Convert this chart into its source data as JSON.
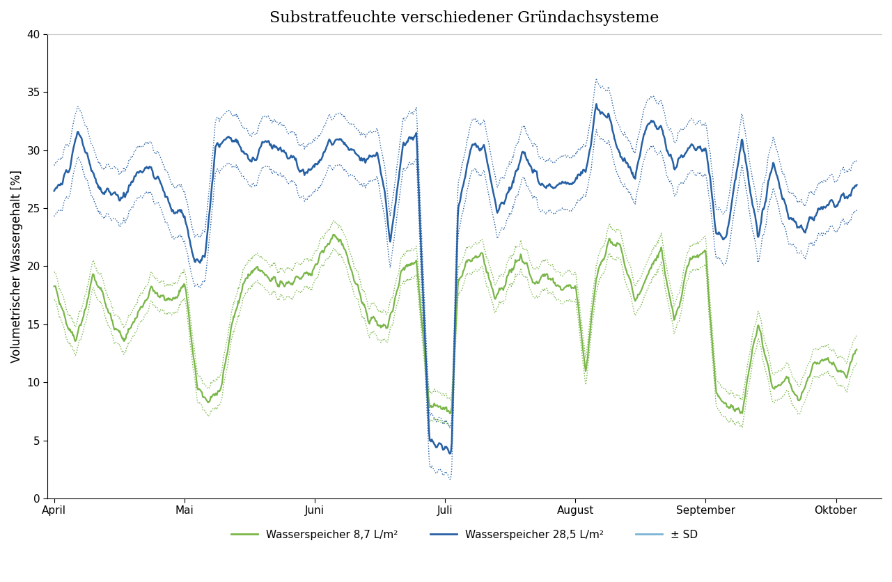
{
  "title": "Substratfeuchte verschiedener Gründachsysteme",
  "ylabel": "Volumetrischer Wassergehalt [%]",
  "ylim": [
    0,
    40
  ],
  "yticks": [
    0,
    5,
    10,
    15,
    20,
    25,
    30,
    35,
    40
  ],
  "months": [
    "April",
    "Mai",
    "Juni",
    "Juli",
    "August",
    "September",
    "Oktober"
  ],
  "color_green": "#7ab648",
  "color_blue": "#2660a4",
  "legend_labels": [
    "Wasserspeicher 8,7 L/m²",
    "Wasserspeicher 28,5 L/m²",
    "± SD"
  ],
  "title_fontsize": 16,
  "label_fontsize": 12,
  "tick_fontsize": 11,
  "green_kp_t": [
    0.0,
    0.08,
    0.16,
    0.24,
    0.3,
    0.38,
    0.46,
    0.55,
    0.65,
    0.75,
    0.88,
    1.0,
    1.1,
    1.18,
    1.28,
    1.36,
    1.46,
    1.56,
    1.66,
    1.76,
    1.88,
    2.0,
    2.1,
    2.2,
    2.3,
    2.42,
    2.55,
    2.68,
    2.78,
    2.88,
    2.95,
    3.0,
    3.05,
    3.1,
    3.18,
    3.28,
    3.38,
    3.48,
    3.58,
    3.68,
    3.78,
    3.88,
    4.0,
    4.08,
    4.16,
    4.26,
    4.36,
    4.46,
    4.56,
    4.66,
    4.76,
    4.88,
    5.0,
    5.08,
    5.16,
    5.28,
    5.4,
    5.52,
    5.62,
    5.72,
    5.82,
    5.92,
    6.0,
    6.08,
    6.16
  ],
  "green_kp_v": [
    18.0,
    15.5,
    13.5,
    16.5,
    19.5,
    17.5,
    14.5,
    13.5,
    16.0,
    18.0,
    17.0,
    18.5,
    9.5,
    8.5,
    9.5,
    15.0,
    18.5,
    20.0,
    19.0,
    18.5,
    19.0,
    20.0,
    22.0,
    22.5,
    19.0,
    15.5,
    14.5,
    20.0,
    20.5,
    8.0,
    8.0,
    8.0,
    7.5,
    19.0,
    20.5,
    21.0,
    17.5,
    19.0,
    21.0,
    18.5,
    19.5,
    18.0,
    18.5,
    11.0,
    19.0,
    22.0,
    21.5,
    17.0,
    19.5,
    21.5,
    15.0,
    20.5,
    21.0,
    9.0,
    8.0,
    7.5,
    15.0,
    9.5,
    10.5,
    8.0,
    11.5,
    12.0,
    11.0,
    10.5,
    13.0
  ],
  "blue_kp_t": [
    0.0,
    0.06,
    0.12,
    0.18,
    0.26,
    0.34,
    0.42,
    0.5,
    0.6,
    0.7,
    0.8,
    0.9,
    1.0,
    1.08,
    1.16,
    1.24,
    1.32,
    1.42,
    1.52,
    1.62,
    1.72,
    1.82,
    1.92,
    2.0,
    2.1,
    2.18,
    2.28,
    2.38,
    2.48,
    2.58,
    2.68,
    2.78,
    2.88,
    2.95,
    3.0,
    3.05,
    3.1,
    3.2,
    3.3,
    3.4,
    3.5,
    3.6,
    3.7,
    3.8,
    3.9,
    4.0,
    4.08,
    4.16,
    4.26,
    4.36,
    4.46,
    4.56,
    4.66,
    4.76,
    4.88,
    5.0,
    5.08,
    5.16,
    5.28,
    5.4,
    5.52,
    5.64,
    5.76,
    5.88,
    6.0,
    6.08,
    6.16
  ],
  "blue_kp_v": [
    26.5,
    27.0,
    28.5,
    32.0,
    29.0,
    27.0,
    26.5,
    25.5,
    27.5,
    28.5,
    27.5,
    25.0,
    24.5,
    20.5,
    20.5,
    30.5,
    31.0,
    30.5,
    29.0,
    31.0,
    30.0,
    29.5,
    28.0,
    28.5,
    30.5,
    31.0,
    30.0,
    29.0,
    30.0,
    22.5,
    30.5,
    31.5,
    5.0,
    4.5,
    4.5,
    4.0,
    25.0,
    30.5,
    30.0,
    25.0,
    26.5,
    30.0,
    27.5,
    27.0,
    27.0,
    27.5,
    28.0,
    34.0,
    32.5,
    29.0,
    28.0,
    32.5,
    32.0,
    28.5,
    30.0,
    30.5,
    23.0,
    22.5,
    31.0,
    22.5,
    29.0,
    24.0,
    23.0,
    25.0,
    25.5,
    26.0,
    27.0
  ],
  "green_sd": 1.2,
  "blue_sd": 2.2
}
